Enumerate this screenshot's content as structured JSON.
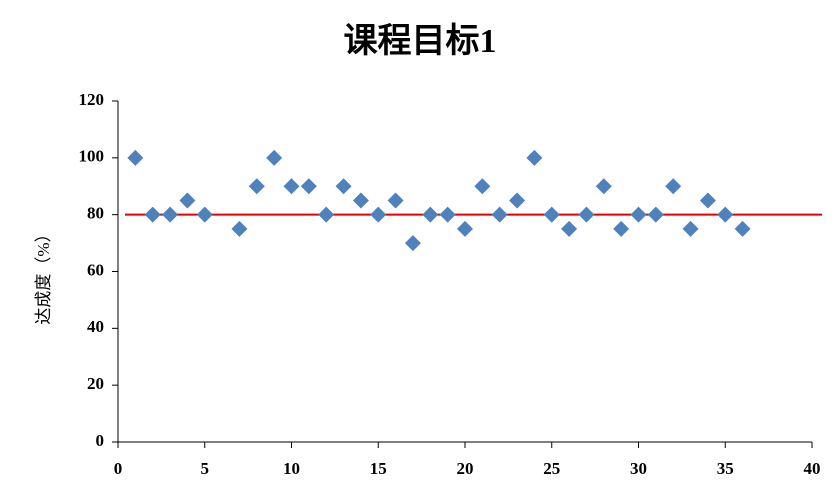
{
  "chart_data": {
    "type": "scatter",
    "title": "课程目标1",
    "y_label": "达成度（%）",
    "series": [
      {
        "color": "#4f81bd",
        "marker": "diamond",
        "x": [
          1,
          2,
          3,
          4,
          5,
          7,
          8,
          9,
          10,
          11,
          12,
          13,
          14,
          15,
          16,
          17,
          18,
          19,
          20,
          21,
          22,
          23,
          24,
          25,
          26,
          27,
          28,
          29,
          30,
          31,
          32,
          33,
          34,
          35,
          36
        ],
        "values": [
          100,
          80,
          80,
          85,
          80,
          75,
          90,
          100,
          90,
          90,
          80,
          90,
          85,
          80,
          85,
          70,
          80,
          80,
          75,
          90,
          80,
          85,
          100,
          80,
          75,
          80,
          90,
          75,
          80,
          80,
          90,
          75,
          85,
          80,
          75
        ]
      }
    ],
    "reference_line": {
      "value": 80,
      "color": "#e00000"
    },
    "xlim": [
      0,
      40
    ],
    "xticks": [
      0,
      5,
      10,
      15,
      20,
      25,
      30,
      35,
      40
    ],
    "ylim": [
      0,
      120
    ],
    "yticks": [
      0,
      20,
      40,
      60,
      80,
      100,
      120
    ]
  }
}
